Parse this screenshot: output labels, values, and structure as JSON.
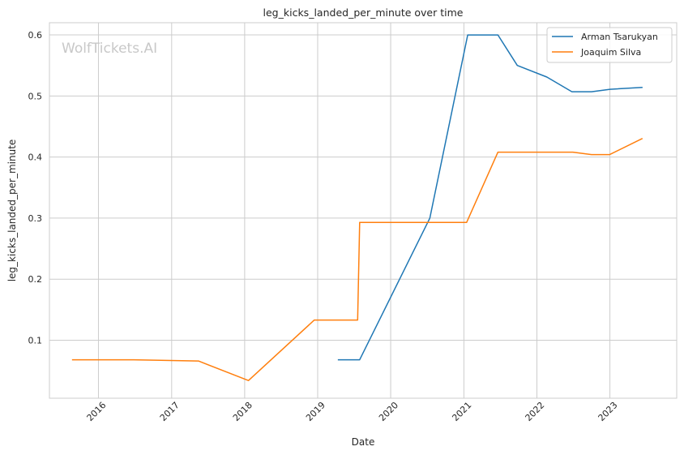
{
  "watermark": "WolfTickets.AI",
  "chart_data": {
    "type": "line",
    "title": "leg_kicks_landed_per_minute over time",
    "xlabel": "Date",
    "ylabel": "leg_kicks_landed_per_minute",
    "x_type": "date",
    "xlim": [
      "2015-05-01",
      "2023-12-01"
    ],
    "ylim": [
      0.005,
      0.62
    ],
    "x_ticks": [
      "2016",
      "2017",
      "2018",
      "2019",
      "2020",
      "2021",
      "2022",
      "2023"
    ],
    "y_ticks": [
      "0.1",
      "0.2",
      "0.3",
      "0.4",
      "0.5",
      "0.6"
    ],
    "grid": true,
    "legend_position": "top-right",
    "series": [
      {
        "name": "Arman Tsarukyan",
        "color": "#1f77b4",
        "points": [
          [
            "2019-04-15",
            0.068
          ],
          [
            "2019-07-30",
            0.068
          ],
          [
            "2020-07-15",
            0.3
          ],
          [
            "2021-01-20",
            0.6
          ],
          [
            "2021-06-20",
            0.6
          ],
          [
            "2021-09-25",
            0.55
          ],
          [
            "2022-02-20",
            0.531
          ],
          [
            "2022-06-25",
            0.507
          ],
          [
            "2022-10-01",
            0.507
          ],
          [
            "2023-01-01",
            0.511
          ],
          [
            "2023-06-10",
            0.514
          ]
        ]
      },
      {
        "name": "Joaquim Silva",
        "color": "#ff7f0e",
        "points": [
          [
            "2015-08-25",
            0.068
          ],
          [
            "2016-06-25",
            0.068
          ],
          [
            "2017-05-15",
            0.066
          ],
          [
            "2018-01-20",
            0.034
          ],
          [
            "2018-12-15",
            0.133
          ],
          [
            "2019-07-20",
            0.133
          ],
          [
            "2019-07-30",
            0.293
          ],
          [
            "2021-01-15",
            0.293
          ],
          [
            "2021-06-20",
            0.408
          ],
          [
            "2022-06-30",
            0.408
          ],
          [
            "2022-10-01",
            0.404
          ],
          [
            "2022-12-31",
            0.404
          ],
          [
            "2023-06-10",
            0.43
          ]
        ]
      }
    ]
  }
}
